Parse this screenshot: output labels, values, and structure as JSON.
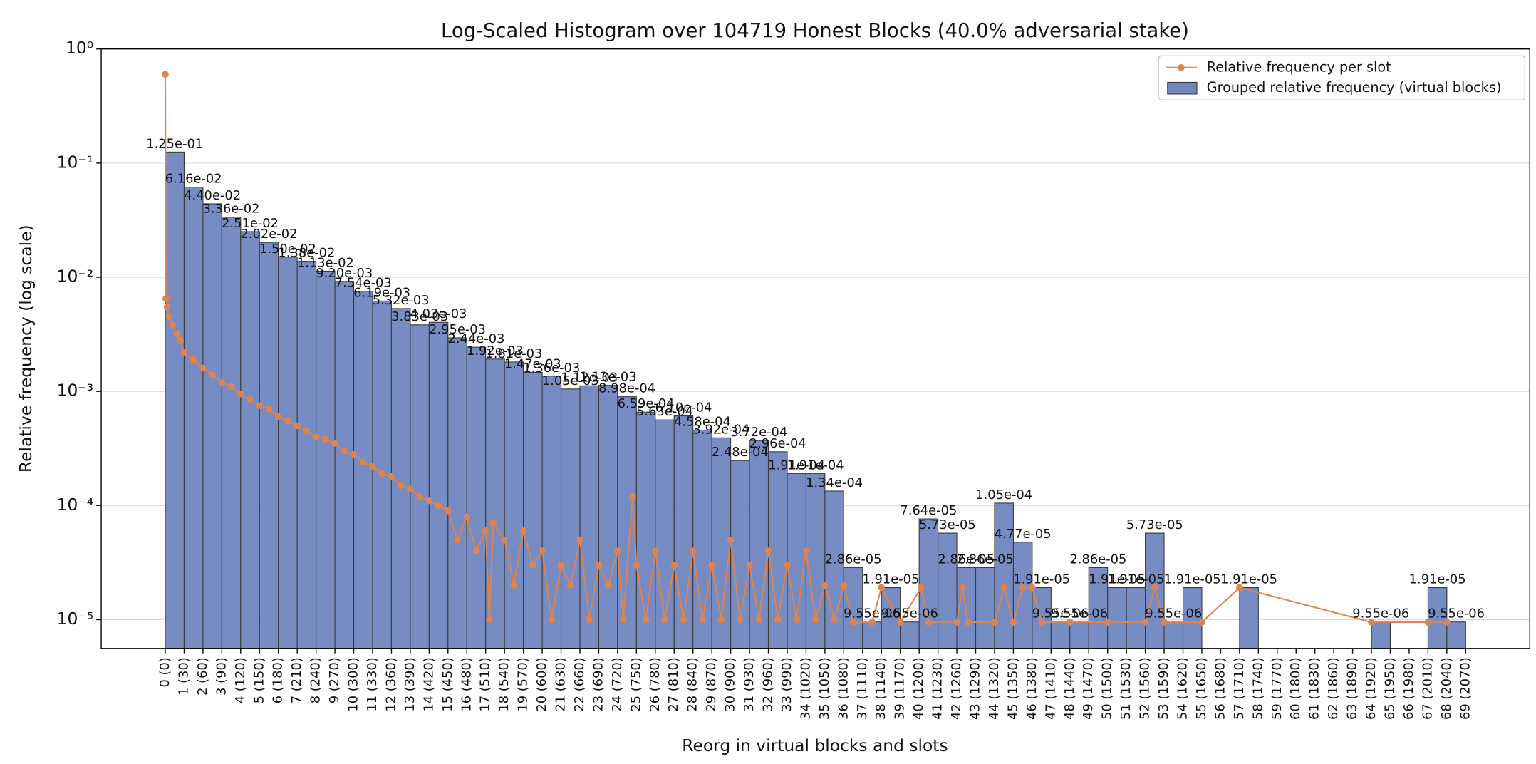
{
  "chart_data": {
    "type": "histogram",
    "title": "Log-Scaled Histogram over 104719 Honest Blocks (40.0% adversarial stake)",
    "xlabel": "Reorg in virtual blocks and slots",
    "ylabel": "Relative frequency (log scale)",
    "yscale": "log",
    "grid": true,
    "legend": "upper right",
    "hist_label": "Grouped relative frequency (virtual blocks)",
    "color": "#6f86bf",
    "edgecolor": "#3a3a3a",
    "bins": [
      0,
      1,
      2,
      3,
      4,
      5,
      6,
      7,
      8,
      9,
      10,
      11,
      12,
      13,
      14,
      15,
      16,
      17,
      18,
      19,
      20,
      21,
      22,
      23,
      24,
      25,
      26,
      27,
      28,
      29,
      30,
      31,
      32,
      33,
      34,
      35,
      36,
      37,
      38,
      39,
      40,
      41,
      42,
      43,
      44,
      45,
      46,
      47,
      48,
      49,
      50,
      51,
      52,
      53,
      54,
      55,
      56,
      57,
      58,
      59,
      60,
      61,
      62,
      63,
      64,
      65,
      66,
      67,
      68,
      69
    ],
    "counts": [
      0.125,
      0.0616,
      0.044,
      0.0336,
      0.0251,
      0.0202,
      0.015,
      0.0138,
      0.0113,
      0.0092,
      0.00754,
      0.00619,
      0.00532,
      0.00383,
      0.00403,
      0.00295,
      0.00244,
      0.00192,
      0.00181,
      0.00147,
      0.00136,
      0.00105,
      0.00112,
      0.00113,
      0.000898,
      0.000659,
      0.000563,
      0.00061,
      0.000458,
      0.000392,
      0.000248,
      0.000372,
      0.000296,
      0.000191,
      0.000191,
      0.000134,
      2.86e-05,
      9.55e-06,
      1.91e-05,
      9.55e-06,
      7.64e-05,
      5.73e-05,
      2.86e-05,
      2.86e-05,
      0.000105,
      4.77e-05,
      1.91e-05,
      9.55e-06,
      9.55e-06,
      2.86e-05,
      1.91e-05,
      1.91e-05,
      5.73e-05,
      9.55e-06,
      1.91e-05,
      null,
      null,
      1.91e-05,
      null,
      null,
      null,
      null,
      null,
      null,
      9.55e-06,
      null,
      null,
      1.91e-05,
      9.55e-06
    ],
    "value_labels": [
      "1.25e-01",
      "6.16e-02",
      "4.40e-02",
      "3.36e-02",
      "2.51e-02",
      "2.02e-02",
      "1.50e-02",
      "1.38e-02",
      "1.13e-02",
      "9.20e-03",
      "7.54e-03",
      "6.19e-03",
      "5.32e-03",
      "3.83e-03",
      "4.03e-03",
      "2.95e-03",
      "2.44e-03",
      "1.92e-03",
      "1.81e-03",
      "1.47e-03",
      "1.36e-03",
      "1.05e-03",
      "1.12e-03",
      "1.13e-03",
      "8.98e-04",
      "6.59e-04",
      "5.63e-04",
      "6.10e-04",
      "4.58e-04",
      "3.92e-04",
      "2.48e-04",
      "3.72e-04",
      "2.96e-04",
      "1.91e-04",
      "1.91e-04",
      "1.34e-04",
      "2.86e-05",
      "9.55e-06",
      "1.91e-05",
      "9.55e-06",
      "7.64e-05",
      "5.73e-05",
      "2.86e-05",
      "2.86e-05",
      "1.05e-04",
      "4.77e-05",
      "1.91e-05",
      "9.55e-06",
      "9.55e-06",
      "2.86e-05",
      "1.91e-05",
      "1.91e-05",
      "5.73e-05",
      "9.55e-06",
      "1.91e-05",
      null,
      null,
      "1.91e-05",
      null,
      null,
      null,
      null,
      null,
      null,
      "9.55e-06",
      null,
      null,
      "1.91e-05",
      "9.55e-06"
    ],
    "series": [
      {
        "name": "Relative frequency per slot",
        "type": "line",
        "color": "#dd8452",
        "x": [
          0,
          0.033,
          0.1,
          0.2,
          0.4,
          0.6,
          0.8,
          1,
          1.5,
          2,
          2.5,
          3,
          3.5,
          4,
          4.5,
          5,
          5.5,
          6,
          6.5,
          7,
          7.5,
          8,
          8.5,
          9,
          9.5,
          10,
          10.5,
          11,
          11.5,
          12,
          12.5,
          13,
          13.5,
          14,
          14.5,
          15,
          15.5,
          16,
          16.5,
          17,
          17.2,
          17.4,
          18,
          18.5,
          19,
          19.5,
          20,
          20.5,
          21,
          21.5,
          22,
          22.5,
          23,
          23.5,
          24,
          24.3,
          24.8,
          25,
          25.5,
          26,
          26.5,
          27,
          27.5,
          28,
          28.5,
          29,
          29.5,
          30,
          30.5,
          31,
          31.5,
          32,
          32.5,
          33,
          33.5,
          34,
          34.5,
          35,
          35.5,
          36,
          36.5,
          37.5,
          38,
          39,
          40.1,
          40.5,
          42,
          42.3,
          42.6,
          44,
          44.5,
          45,
          45.5,
          46,
          46.5,
          48,
          50,
          52,
          52.5,
          53,
          55,
          57,
          64,
          67,
          68
        ],
        "values": [
          0.6,
          0.0065,
          0.0055,
          0.0045,
          0.0038,
          0.0032,
          0.0028,
          0.0022,
          0.0019,
          0.0016,
          0.0014,
          0.0012,
          0.0011,
          0.00095,
          0.00085,
          0.00075,
          0.0007,
          0.0006,
          0.00055,
          0.0005,
          0.00045,
          0.0004,
          0.00038,
          0.00035,
          0.0003,
          0.00028,
          0.00024,
          0.00022,
          0.00019,
          0.00018,
          0.00015,
          0.00014,
          0.00012,
          0.00011,
          0.0001,
          9e-05,
          5e-05,
          8e-05,
          4e-05,
          6e-05,
          1e-05,
          7e-05,
          5e-05,
          2e-05,
          6e-05,
          3e-05,
          4e-05,
          1e-05,
          3e-05,
          2e-05,
          5e-05,
          1e-05,
          3e-05,
          2e-05,
          4e-05,
          1e-05,
          0.00012,
          3e-05,
          1e-05,
          4e-05,
          1e-05,
          3e-05,
          1e-05,
          4e-05,
          1e-05,
          3e-05,
          1e-05,
          5e-05,
          1e-05,
          3e-05,
          1e-05,
          4e-05,
          1e-05,
          3e-05,
          1e-05,
          4e-05,
          1e-05,
          2e-05,
          1e-05,
          2e-05,
          9.5e-06,
          9.5e-06,
          1.91e-05,
          9.5e-06,
          1.91e-05,
          9.5e-06,
          9.5e-06,
          1.91e-05,
          9.5e-06,
          9.5e-06,
          1.91e-05,
          9.5e-06,
          1.91e-05,
          1.91e-05,
          9.5e-06,
          9.5e-06,
          9.5e-06,
          9.5e-06,
          1.91e-05,
          9.5e-06,
          9.5e-06,
          1.91e-05,
          9.5e-06,
          9.5e-06,
          9.5e-06
        ]
      }
    ],
    "xlim": [
      -3.4,
      72.4
    ],
    "ylim": [
      5.6e-06,
      1.0
    ],
    "yticks": [
      {
        "value": 1e-05,
        "label": "10⁻⁵"
      },
      {
        "value": 0.0001,
        "label": "10⁻⁴"
      },
      {
        "value": 0.001,
        "label": "10⁻³"
      },
      {
        "value": 0.01,
        "label": "10⁻²"
      },
      {
        "value": 0.1,
        "label": "10⁻¹"
      },
      {
        "value": 1,
        "label": "10⁰"
      }
    ],
    "xticks": [
      {
        "value": 0,
        "label": "0 (0)"
      },
      {
        "value": 1,
        "label": "1 (30)"
      },
      {
        "value": 2,
        "label": "2 (60)"
      },
      {
        "value": 3,
        "label": "3 (90)"
      },
      {
        "value": 4,
        "label": "4 (120)"
      },
      {
        "value": 5,
        "label": "5 (150)"
      },
      {
        "value": 6,
        "label": "6 (180)"
      },
      {
        "value": 7,
        "label": "7 (210)"
      },
      {
        "value": 8,
        "label": "8 (240)"
      },
      {
        "value": 9,
        "label": "9 (270)"
      },
      {
        "value": 10,
        "label": "10 (300)"
      },
      {
        "value": 11,
        "label": "11 (330)"
      },
      {
        "value": 12,
        "label": "12 (360)"
      },
      {
        "value": 13,
        "label": "13 (390)"
      },
      {
        "value": 14,
        "label": "14 (420)"
      },
      {
        "value": 15,
        "label": "15 (450)"
      },
      {
        "value": 16,
        "label": "16 (480)"
      },
      {
        "value": 17,
        "label": "17 (510)"
      },
      {
        "value": 18,
        "label": "18 (540)"
      },
      {
        "value": 19,
        "label": "19 (570)"
      },
      {
        "value": 20,
        "label": "20 (600)"
      },
      {
        "value": 21,
        "label": "21 (630)"
      },
      {
        "value": 22,
        "label": "22 (660)"
      },
      {
        "value": 23,
        "label": "23 (690)"
      },
      {
        "value": 24,
        "label": "24 (720)"
      },
      {
        "value": 25,
        "label": "25 (750)"
      },
      {
        "value": 26,
        "label": "26 (780)"
      },
      {
        "value": 27,
        "label": "27 (810)"
      },
      {
        "value": 28,
        "label": "28 (840)"
      },
      {
        "value": 29,
        "label": "29 (870)"
      },
      {
        "value": 30,
        "label": "30 (900)"
      },
      {
        "value": 31,
        "label": "31 (930)"
      },
      {
        "value": 32,
        "label": "32 (960)"
      },
      {
        "value": 33,
        "label": "33 (990)"
      },
      {
        "value": 34,
        "label": "34 (1020)"
      },
      {
        "value": 35,
        "label": "35 (1050)"
      },
      {
        "value": 36,
        "label": "36 (1080)"
      },
      {
        "value": 37,
        "label": "37 (1110)"
      },
      {
        "value": 38,
        "label": "38 (1140)"
      },
      {
        "value": 39,
        "label": "39 (1170)"
      },
      {
        "value": 40,
        "label": "40 (1200)"
      },
      {
        "value": 41,
        "label": "41 (1230)"
      },
      {
        "value": 42,
        "label": "42 (1260)"
      },
      {
        "value": 43,
        "label": "43 (1290)"
      },
      {
        "value": 44,
        "label": "44 (1320)"
      },
      {
        "value": 45,
        "label": "45 (1350)"
      },
      {
        "value": 46,
        "label": "46 (1380)"
      },
      {
        "value": 47,
        "label": "47 (1410)"
      },
      {
        "value": 48,
        "label": "48 (1440)"
      },
      {
        "value": 49,
        "label": "49 (1470)"
      },
      {
        "value": 50,
        "label": "50 (1500)"
      },
      {
        "value": 51,
        "label": "51 (1530)"
      },
      {
        "value": 52,
        "label": "52 (1560)"
      },
      {
        "value": 53,
        "label": "53 (1590)"
      },
      {
        "value": 54,
        "label": "54 (1620)"
      },
      {
        "value": 55,
        "label": "55 (1650)"
      },
      {
        "value": 56,
        "label": "56 (1680)"
      },
      {
        "value": 57,
        "label": "57 (1710)"
      },
      {
        "value": 58,
        "label": "58 (1740)"
      },
      {
        "value": 59,
        "label": "59 (1770)"
      },
      {
        "value": 60,
        "label": "60 (1800)"
      },
      {
        "value": 61,
        "label": "61 (1830)"
      },
      {
        "value": 62,
        "label": "62 (1860)"
      },
      {
        "value": 63,
        "label": "63 (1890)"
      },
      {
        "value": 64,
        "label": "64 (1920)"
      },
      {
        "value": 65,
        "label": "65 (1950)"
      },
      {
        "value": 66,
        "label": "66 (1980)"
      },
      {
        "value": 67,
        "label": "67 (2010)"
      },
      {
        "value": 68,
        "label": "68 (2040)"
      },
      {
        "value": 69,
        "label": "69 (2070)"
      }
    ]
  }
}
